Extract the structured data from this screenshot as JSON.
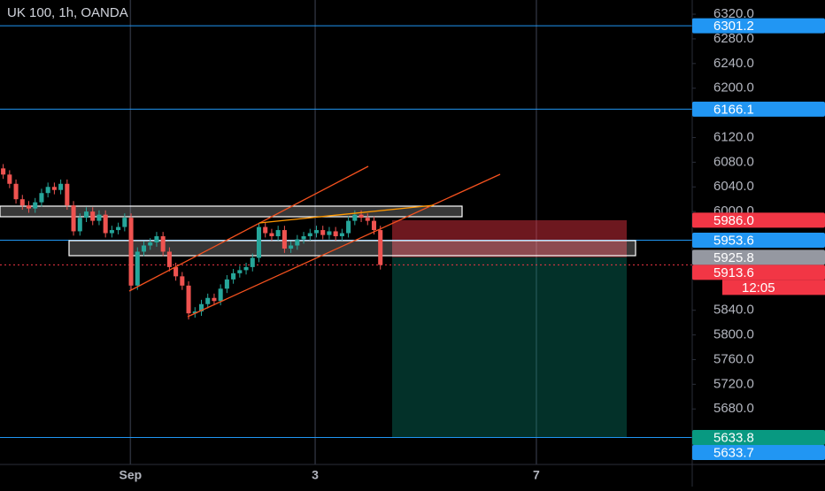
{
  "chart_data": {
    "type": "candlestick",
    "title": "UK 100, 1h, OANDA",
    "up_color": "#26a69a",
    "down_color": "#ef5350",
    "open": [
      6070,
      6060,
      6045,
      6020,
      6010,
      6005,
      6015,
      6030,
      6040,
      6035,
      6045,
      6010,
      5968,
      5990,
      6000,
      5985,
      5995,
      5965,
      5970,
      5975,
      5990,
      5880,
      5935,
      5945,
      5950,
      5960,
      5935,
      5910,
      5895,
      5880,
      5835,
      5838,
      5850,
      5860,
      5855,
      5875,
      5890,
      5900,
      5905,
      5910,
      5925,
      5975,
      5965,
      5960,
      5970,
      5940,
      5945,
      5955,
      5960,
      5965,
      5970,
      5962,
      5968,
      5960,
      5965,
      5985,
      5995,
      5990,
      5985,
      5970
    ],
    "high": [
      6077,
      6067,
      6052,
      6027,
      6017,
      6022,
      6037,
      6047,
      6047,
      6052,
      6052,
      6017,
      5997,
      6007,
      6007,
      6002,
      6002,
      5977,
      5982,
      5997,
      5997,
      5942,
      5952,
      5957,
      5967,
      5967,
      5942,
      5917,
      5902,
      5887,
      5845,
      5857,
      5867,
      5867,
      5882,
      5897,
      5907,
      5912,
      5917,
      5932,
      5982,
      5982,
      5972,
      5977,
      5977,
      5952,
      5962,
      5967,
      5972,
      5977,
      5977,
      5975,
      5975,
      5972,
      5992,
      6002,
      6002,
      5997,
      5992,
      5977
    ],
    "low": [
      6053,
      6038,
      6013,
      6003,
      5998,
      5998,
      6008,
      6023,
      6028,
      6028,
      6003,
      5961,
      5961,
      5983,
      5978,
      5978,
      5958,
      5958,
      5963,
      5968,
      5873,
      5873,
      5928,
      5938,
      5943,
      5928,
      5903,
      5888,
      5873,
      5825,
      5828,
      5831,
      5843,
      5848,
      5848,
      5868,
      5883,
      5893,
      5898,
      5903,
      5918,
      5958,
      5953,
      5953,
      5933,
      5933,
      5938,
      5948,
      5953,
      5958,
      5955,
      5955,
      5953,
      5953,
      5958,
      5978,
      5983,
      5978,
      5963,
      5906
    ],
    "close": [
      6060,
      6045,
      6020,
      6010,
      6005,
      6015,
      6030,
      6040,
      6035,
      6045,
      6010,
      5968,
      5990,
      6000,
      5985,
      5995,
      5965,
      5970,
      5975,
      5990,
      5880,
      5935,
      5945,
      5950,
      5960,
      5935,
      5910,
      5895,
      5880,
      5835,
      5838,
      5850,
      5860,
      5855,
      5875,
      5890,
      5900,
      5905,
      5910,
      5925,
      5975,
      5965,
      5960,
      5970,
      5940,
      5945,
      5955,
      5960,
      5965,
      5970,
      5962,
      5968,
      5960,
      5965,
      5985,
      5995,
      5990,
      5985,
      5970,
      5913.6
    ],
    "xlim": [
      0,
      108
    ],
    "xticks": [
      {
        "value": 20.4,
        "label": "Sep"
      },
      {
        "value": 49.3,
        "label": "3"
      },
      {
        "value": 83.9,
        "label": "7"
      }
    ],
    "grid": true,
    "ylim": [
      5590,
      6343
    ],
    "yticks": [
      {
        "value": 6320,
        "label": "6320.0"
      },
      {
        "value": 6280,
        "label": "6280.0"
      },
      {
        "value": 6240,
        "label": "6240.0"
      },
      {
        "value": 6200,
        "label": "6200.0"
      },
      {
        "value": 6120,
        "label": "6120.0"
      },
      {
        "value": 6080,
        "label": "6080.0"
      },
      {
        "value": 6040,
        "label": "6040.0"
      },
      {
        "value": 6000,
        "label": "6000.0"
      },
      {
        "value": 5840,
        "label": "5840.0"
      },
      {
        "value": 5800,
        "label": "5800.0"
      },
      {
        "value": 5760,
        "label": "5760.0"
      },
      {
        "value": 5720,
        "label": "5720.0"
      },
      {
        "value": 5680,
        "label": "5680.0"
      }
    ],
    "markers": [
      {
        "value": 6301.2,
        "label": "6301.2",
        "color": "#2196f3",
        "line": "solid"
      },
      {
        "value": 6166.1,
        "label": "6166.1",
        "color": "#2196f3",
        "line": "solid"
      },
      {
        "value": 5986,
        "label": "5986.0",
        "color": "#f23645"
      },
      {
        "value": 5953.6,
        "label": "5953.6",
        "color": "#2196f3",
        "line": "solid"
      },
      {
        "value": 5925.8,
        "label": "5925.8",
        "color": "#9598a1"
      },
      {
        "value": 5913.6,
        "label": "5913.6",
        "color": "#f23645",
        "line": "dotted"
      },
      {
        "value": 5633.8,
        "label": "5633.8",
        "color": "#089981"
      },
      {
        "value": 5633.7,
        "label": "5633.7",
        "color": "#2196f3",
        "line": "solid"
      }
    ],
    "countdown": "12:05",
    "position": {
      "stop": 5986,
      "entry": 5925.8,
      "target": 5633.8
    }
  }
}
